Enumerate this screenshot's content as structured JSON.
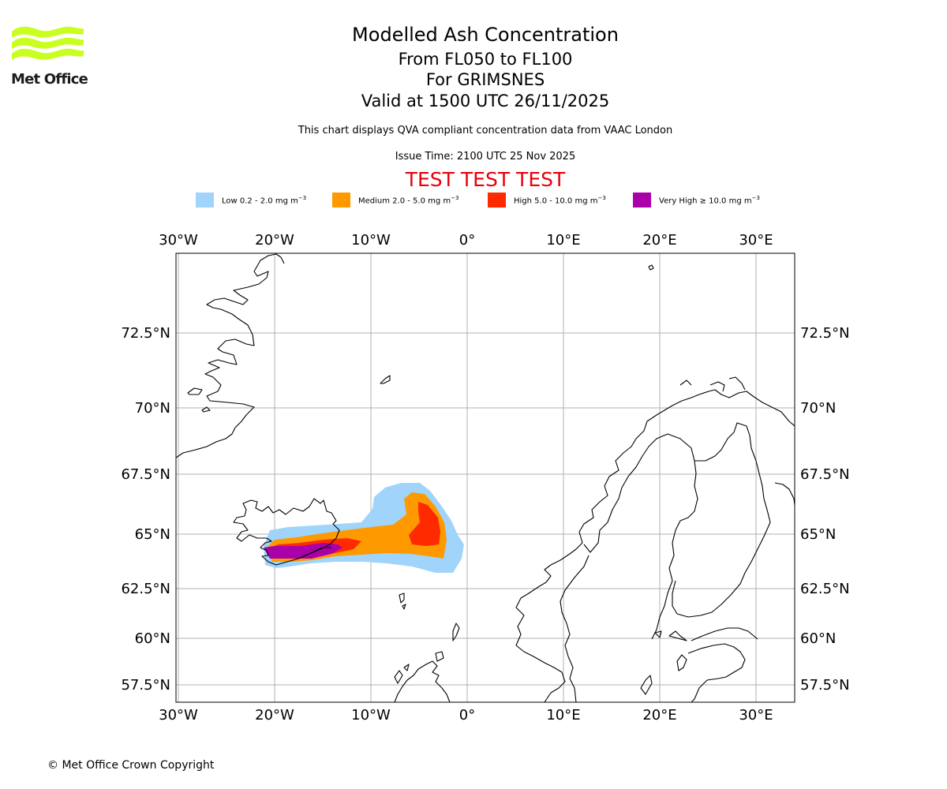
{
  "logo": {
    "brand": "Met Office",
    "colors": {
      "waves": "#c8ff1e",
      "text": "#1c1c1c"
    }
  },
  "header": {
    "title": "Modelled Ash Concentration",
    "subtitle_levels": "From FL050 to FL100",
    "subtitle_volcano": "For GRIMSNES",
    "subtitle_valid": "Valid at 1500 UTC 26/11/2025",
    "disclaimer": "This chart displays QVA compliant concentration data from VAAC London",
    "issue_time": "Issue Time: 2100 UTC 25 Nov 2025",
    "test_banner": "TEST TEST TEST",
    "test_color": "#e8000b"
  },
  "legend": [
    {
      "label": "Low 0.2 - 2.0 mg m",
      "unit_sup": "−3",
      "color": "#a0d4fa"
    },
    {
      "label": "Medium 2.0 - 5.0 mg m",
      "unit_sup": "−3",
      "color": "#ff9900"
    },
    {
      "label": "High 5.0 - 10.0 mg m",
      "unit_sup": "−3",
      "color": "#ff2a00"
    },
    {
      "label": "Very High  ≥  10.0 mg m",
      "unit_sup": "−3",
      "color": "#aa00aa"
    }
  ],
  "map": {
    "lon_labels": [
      "30°W",
      "20°W",
      "10°W",
      "0°",
      "10°E",
      "20°E",
      "30°E"
    ],
    "lat_labels": [
      "72.5°N",
      "70°N",
      "67.5°N",
      "65°N",
      "62.5°N",
      "60°N",
      "57.5°N"
    ],
    "lon_range": [
      -30,
      34
    ],
    "lat_range": [
      56.8,
      75.0
    ],
    "ash_levels": [
      "low",
      "medium",
      "high",
      "very_high"
    ],
    "volcano": "GRIMSNES",
    "gridline_color": "#b0b0b0"
  },
  "footer": {
    "copyright": "© Met Office Crown Copyright"
  }
}
